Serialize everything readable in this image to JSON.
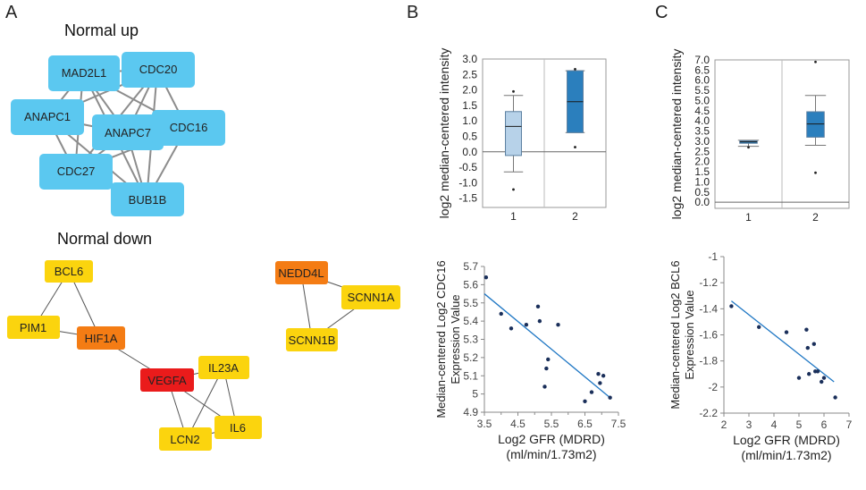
{
  "panels": {
    "a": "A",
    "b": "B",
    "c": "C"
  },
  "networks": {
    "up_title": "Normal up",
    "down_title": "Normal down",
    "up_nodes": [
      "MAD2L1",
      "CDC20",
      "ANAPC1",
      "ANAPC7",
      "CDC16",
      "CDC27",
      "BUB1B"
    ],
    "down_nodes": [
      "BCL6",
      "PIM1",
      "HIF1A",
      "VEGFA",
      "IL23A",
      "LCN2",
      "IL6",
      "NEDD4L",
      "SCNN1A",
      "SCNN1B"
    ],
    "colors": {
      "up": "#5bc8f0",
      "yellow": "#fbd40e",
      "orange": "#f47c14",
      "red": "#ea1b1b",
      "edge": "#888888"
    }
  },
  "chart_data": [
    {
      "type": "box",
      "id": "boxB",
      "ylabel": "log2 median-centered intensity",
      "ylim": [
        -1.8,
        3.0
      ],
      "yticks": [
        "3.0",
        "2.5",
        "2.0",
        "1.5",
        "1.0",
        "0.5",
        "0.0",
        "-0.5",
        "-1.0",
        "-1.5"
      ],
      "categories": [
        "1",
        "2"
      ],
      "boxes": [
        {
          "min": -0.65,
          "q1": -0.12,
          "median": 0.82,
          "q3": 1.3,
          "max": 1.82,
          "outliers": [
            1.95,
            -1.22
          ],
          "color": "#b7d2e9"
        },
        {
          "min": 0.62,
          "q1": 0.62,
          "median": 1.62,
          "q3": 2.62,
          "max": 2.62,
          "outliers": [
            2.67,
            0.15
          ],
          "color": "#2b7fbd"
        }
      ]
    },
    {
      "type": "box",
      "id": "boxC",
      "ylabel": "log2 median-centered intensity",
      "ylim": [
        -0.3,
        7.0
      ],
      "yticks": [
        "7.0",
        "6.5",
        "6.0",
        "5.5",
        "5.0",
        "4.5",
        "4.0",
        "3.5",
        "3.0",
        "2.5",
        "2.0",
        "1.5",
        "1.0",
        "0.5",
        "0.0"
      ],
      "categories": [
        "1",
        "2"
      ],
      "boxes": [
        {
          "min": 2.75,
          "q1": 2.9,
          "median": 2.97,
          "q3": 3.02,
          "max": 3.05,
          "outliers": [
            2.7
          ],
          "color": "#2b7fbd"
        },
        {
          "min": 2.8,
          "q1": 3.2,
          "median": 3.85,
          "q3": 4.45,
          "max": 5.25,
          "outliers": [
            6.9,
            1.45
          ],
          "color": "#2b7fbd"
        }
      ]
    },
    {
      "type": "scatter",
      "id": "scatterB",
      "xlabel": "Log2 GFR (MDRD)",
      "xunit": "(ml/min/1.73m2)",
      "ylabel": "Median-centered Log2 CDC16",
      "ylabel2": "Expression Value",
      "xlim": [
        3.5,
        7.5
      ],
      "ylim": [
        4.9,
        5.7
      ],
      "xticks": [
        "3.5",
        "4.5",
        "5.5",
        "6.5",
        "7.5"
      ],
      "xticks_minor": [
        "4",
        "5",
        "6",
        "7"
      ],
      "yticks": [
        "5.7",
        "5.6",
        "5.5",
        "5.4",
        "5.3",
        "5.2",
        "5.1",
        "5",
        "4.9"
      ],
      "x": [
        3.55,
        4.0,
        4.3,
        4.75,
        5.1,
        5.15,
        5.3,
        5.35,
        5.4,
        5.7,
        6.5,
        6.7,
        6.9,
        6.95,
        7.05,
        7.25
      ],
      "y": [
        5.64,
        5.44,
        5.36,
        5.38,
        5.48,
        5.4,
        5.04,
        5.14,
        5.19,
        5.38,
        4.96,
        5.01,
        5.11,
        5.06,
        5.1,
        4.98
      ],
      "fit": [
        [
          3.5,
          5.55
        ],
        [
          7.25,
          4.98
        ]
      ],
      "color": "#1a2f5a",
      "line_color": "#1f77c4"
    },
    {
      "type": "scatter",
      "id": "scatterC",
      "xlabel": "Log2 GFR (MDRD)",
      "xunit": "(ml/min/1.73m2)",
      "ylabel": "Median-centered Log2 BCL6",
      "ylabel2": "Expression Value",
      "xlim": [
        2,
        7
      ],
      "ylim": [
        -2.2,
        -1.0
      ],
      "xticks": [
        "2",
        "3",
        "4",
        "5",
        "6",
        "7"
      ],
      "yticks": [
        "-1",
        "-1.2",
        "-1.4",
        "-1.6",
        "-1.8",
        "-2",
        "-2.2"
      ],
      "x": [
        2.3,
        3.4,
        4.5,
        5.0,
        5.3,
        5.35,
        5.4,
        5.6,
        5.65,
        5.75,
        5.9,
        6.0,
        6.45
      ],
      "y": [
        -1.38,
        -1.54,
        -1.58,
        -1.93,
        -1.56,
        -1.7,
        -1.9,
        -1.67,
        -1.88,
        -1.88,
        -1.96,
        -1.93,
        -2.08
      ],
      "fit": [
        [
          2.3,
          -1.34
        ],
        [
          6.4,
          -1.96
        ]
      ],
      "color": "#1a2f5a",
      "line_color": "#1f77c4"
    }
  ]
}
